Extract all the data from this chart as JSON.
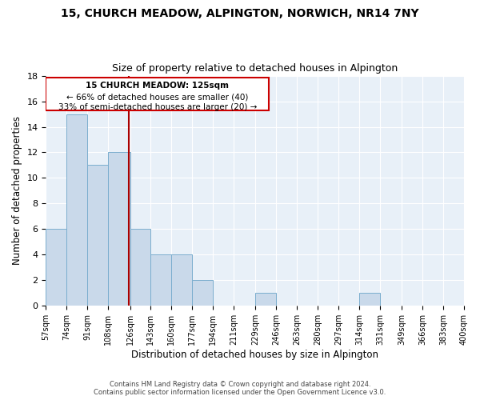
{
  "title": "15, CHURCH MEADOW, ALPINGTON, NORWICH, NR14 7NY",
  "subtitle": "Size of property relative to detached houses in Alpington",
  "xlabel": "Distribution of detached houses by size in Alpington",
  "ylabel": "Number of detached properties",
  "bar_values": [
    6,
    15,
    11,
    12,
    6,
    4,
    4,
    2,
    0,
    0,
    1,
    0,
    0,
    0,
    0,
    1,
    0,
    0,
    0,
    0
  ],
  "bin_edges": [
    57,
    74,
    91,
    108,
    126,
    143,
    160,
    177,
    194,
    211,
    229,
    246,
    263,
    280,
    297,
    314,
    331,
    349,
    366,
    383,
    400
  ],
  "bin_labels": [
    "57sqm",
    "74sqm",
    "91sqm",
    "108sqm",
    "126sqm",
    "143sqm",
    "160sqm",
    "177sqm",
    "194sqm",
    "211sqm",
    "229sqm",
    "246sqm",
    "263sqm",
    "280sqm",
    "297sqm",
    "314sqm",
    "331sqm",
    "349sqm",
    "366sqm",
    "383sqm",
    "400sqm"
  ],
  "bar_color": "#c9d9ea",
  "bar_edge_color": "#7aaece",
  "vline_color": "#aa0000",
  "vline_x": 125,
  "annotation_line1": "15 CHURCH MEADOW: 125sqm",
  "annotation_line2": "← 66% of detached houses are smaller (40)",
  "annotation_line3": "33% of semi-detached houses are larger (20) →",
  "ann_box_color": "#cc0000",
  "ylim": [
    0,
    18
  ],
  "yticks": [
    0,
    2,
    4,
    6,
    8,
    10,
    12,
    14,
    16,
    18
  ],
  "background_color": "#e8f0f8",
  "footer_text": "Contains HM Land Registry data © Crown copyright and database right 2024.\nContains public sector information licensed under the Open Government Licence v3.0.",
  "title_fontsize": 10,
  "subtitle_fontsize": 9,
  "ylabel_fontsize": 8.5,
  "xlabel_fontsize": 8.5,
  "tick_fontsize": 7,
  "annotation_fontsize": 7.5,
  "footer_fontsize": 6
}
